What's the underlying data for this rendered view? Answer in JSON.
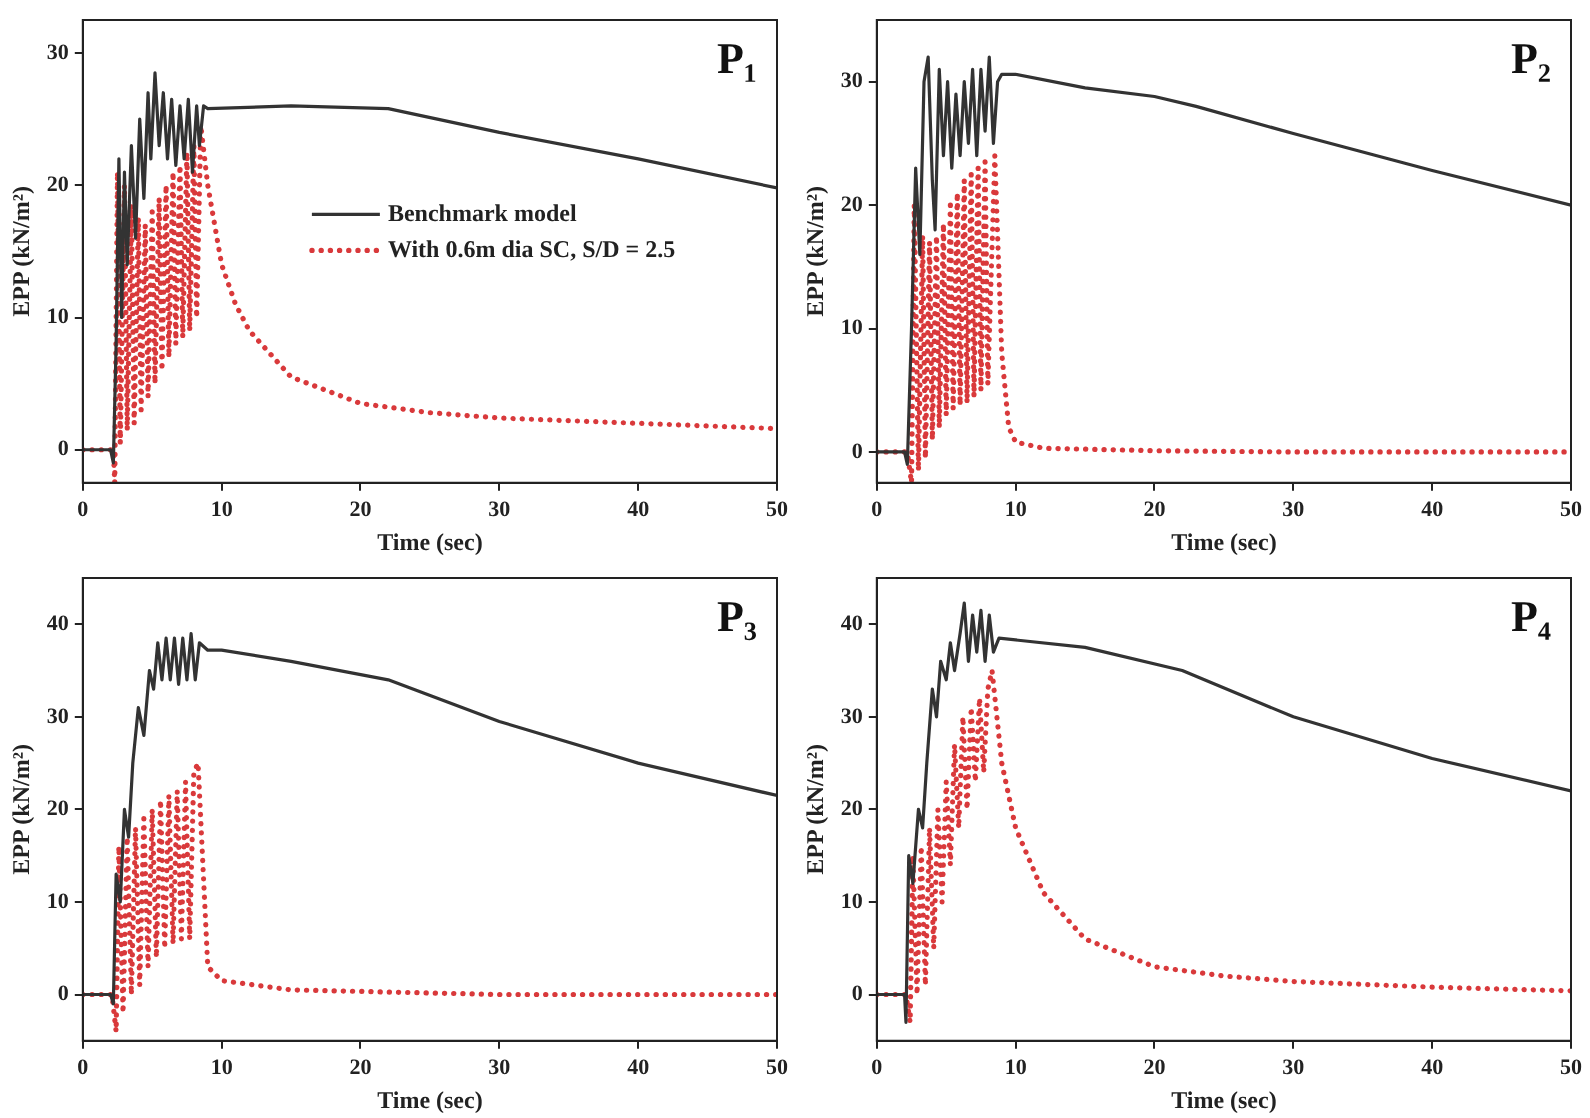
{
  "chart_data": [
    {
      "type": "line",
      "title": "P₁",
      "xlabel": "Time (sec)",
      "ylabel": "EPP (kN/m²)",
      "xlim": [
        0,
        50
      ],
      "xticks": [
        0,
        10,
        20,
        30,
        40,
        50
      ],
      "ylim": [
        -2.5,
        32.5
      ],
      "yticks": [
        0,
        10,
        20,
        30
      ],
      "grid": false,
      "legend": "center",
      "marker": "none",
      "series": [
        {
          "name": "Benchmark model",
          "color": "#333333",
          "line_style": "solid",
          "x": [
            0,
            2,
            2.2,
            2.4,
            2.6,
            2.8,
            3.0,
            3.2,
            3.5,
            3.8,
            4.1,
            4.4,
            4.7,
            4.9,
            5.2,
            5.5,
            5.8,
            6.1,
            6.4,
            6.7,
            7.0,
            7.3,
            7.6,
            7.9,
            8.2,
            8.4,
            8.7,
            9,
            15,
            22,
            30,
            40,
            50
          ],
          "values": [
            0,
            0,
            -1,
            8,
            22,
            10,
            21,
            14,
            23,
            16,
            25,
            19,
            27,
            22,
            28.5,
            23,
            27,
            22,
            26.5,
            21.5,
            26,
            22,
            26.5,
            21,
            26,
            23,
            26,
            25.8,
            26,
            25.8,
            24,
            22,
            19.8
          ]
        },
        {
          "name": "With 0.6m dia SC, S/D = 2.5",
          "color": "#d9393b",
          "line_style": "dotted",
          "x": [
            0,
            2.2,
            2.3,
            2.5,
            2.7,
            3.0,
            3.2,
            3.5,
            3.7,
            4.0,
            4.2,
            4.5,
            4.7,
            5.0,
            5.2,
            5.5,
            5.7,
            6.0,
            6.2,
            6.5,
            6.7,
            7.0,
            7.2,
            7.5,
            7.7,
            8.0,
            8.2,
            8.5,
            9,
            10,
            11,
            12,
            15,
            20,
            25,
            30,
            40,
            50
          ],
          "values": [
            0,
            0,
            -2.5,
            21,
            0.5,
            20,
            1.5,
            18.5,
            2,
            17.5,
            3,
            17,
            4,
            18,
            5,
            19,
            6,
            20,
            7,
            21,
            8,
            21.5,
            8.5,
            22.5,
            9,
            23,
            10,
            24.5,
            20,
            14,
            11,
            9,
            5.5,
            3.5,
            2.8,
            2.4,
            2,
            1.6
          ]
        }
      ]
    },
    {
      "type": "line",
      "title": "P₂",
      "xlabel": "Time (sec)",
      "ylabel": "EPP (kN/m²)",
      "xlim": [
        0,
        50
      ],
      "xticks": [
        0,
        10,
        20,
        30,
        40,
        50
      ],
      "ylim": [
        -2.5,
        35
      ],
      "yticks": [
        0,
        10,
        20,
        30
      ],
      "grid": false,
      "marker": "none",
      "series": [
        {
          "color": "#333333",
          "line_style": "solid",
          "x": [
            0,
            2,
            2.2,
            2.5,
            2.8,
            3.1,
            3.4,
            3.7,
            4.0,
            4.2,
            4.5,
            4.8,
            5.1,
            5.4,
            5.7,
            6.0,
            6.3,
            6.6,
            6.9,
            7.2,
            7.5,
            7.8,
            8.1,
            8.4,
            8.7,
            9,
            10,
            15,
            20,
            23,
            30,
            40,
            50
          ],
          "values": [
            0,
            0,
            -1,
            10,
            23,
            16,
            30,
            32,
            22,
            18,
            31,
            24,
            30,
            23,
            29,
            24,
            30,
            25,
            31,
            24,
            31,
            26,
            32,
            25,
            30,
            30.6,
            30.6,
            29.5,
            28.8,
            28,
            25.8,
            22.8,
            20
          ]
        },
        {
          "color": "#d9393b",
          "line_style": "dotted",
          "x": [
            0,
            2.2,
            2.5,
            2.7,
            3.0,
            3.3,
            3.5,
            3.8,
            4.0,
            4.3,
            4.5,
            4.8,
            5.0,
            5.3,
            5.5,
            5.8,
            6.0,
            6.3,
            6.5,
            6.8,
            7.0,
            7.3,
            7.5,
            7.8,
            8.0,
            8.5,
            9,
            9.5,
            10,
            12,
            20,
            30,
            50
          ],
          "values": [
            0,
            0,
            -2.5,
            20,
            -1.5,
            17.5,
            -0.5,
            17,
            1,
            17.5,
            2,
            18.5,
            3,
            20,
            3.5,
            21,
            3.8,
            22,
            4,
            22.5,
            4.5,
            23,
            5,
            23.5,
            5.5,
            24,
            8,
            2,
            0.8,
            0.3,
            0.1,
            0,
            0
          ]
        }
      ]
    },
    {
      "type": "line",
      "title": "P₃",
      "xlabel": "Time (sec)",
      "ylabel": "EPP (kN/m²)",
      "xlim": [
        0,
        50
      ],
      "xticks": [
        0,
        10,
        20,
        30,
        40,
        50
      ],
      "ylim": [
        -5,
        45
      ],
      "yticks": [
        0,
        10,
        20,
        30,
        40
      ],
      "grid": false,
      "marker": "none",
      "series": [
        {
          "color": "#333333",
          "line_style": "solid",
          "x": [
            0,
            2,
            2.2,
            2.4,
            2.7,
            3.0,
            3.3,
            3.6,
            4.0,
            4.4,
            4.8,
            5.1,
            5.4,
            5.7,
            6.0,
            6.3,
            6.6,
            6.9,
            7.2,
            7.5,
            7.8,
            8.1,
            8.4,
            9,
            10,
            15,
            22,
            30,
            40,
            50
          ],
          "values": [
            0,
            0,
            -1,
            13,
            10,
            20,
            17,
            25,
            31,
            28,
            35,
            33,
            38,
            34,
            38.5,
            34,
            38.5,
            33.5,
            38.5,
            34,
            39,
            34,
            38,
            37.2,
            37.2,
            36,
            34,
            29.5,
            25,
            21.5
          ]
        },
        {
          "color": "#d9393b",
          "line_style": "dotted",
          "x": [
            0,
            2.1,
            2.4,
            2.6,
            2.9,
            3.2,
            3.5,
            3.8,
            4.1,
            4.4,
            4.7,
            5.0,
            5.3,
            5.6,
            5.9,
            6.2,
            6.5,
            6.8,
            7.1,
            7.4,
            7.7,
            8.0,
            8.3,
            9,
            10,
            15,
            30,
            50
          ],
          "values": [
            0,
            0,
            -4,
            16,
            -2,
            17,
            0,
            18,
            1,
            19,
            3,
            20,
            4,
            21,
            5,
            21.5,
            5.5,
            22,
            6,
            23,
            6,
            24,
            25,
            3,
            1.5,
            0.5,
            0,
            0
          ]
        }
      ]
    },
    {
      "type": "line",
      "title": "P₄",
      "xlabel": "Time (sec)",
      "ylabel": "EPP (kN/m²)",
      "xlim": [
        0,
        50
      ],
      "xticks": [
        0,
        10,
        20,
        30,
        40,
        50
      ],
      "ylim": [
        -5,
        45
      ],
      "yticks": [
        0,
        10,
        20,
        30,
        40
      ],
      "grid": false,
      "marker": "none",
      "series": [
        {
          "color": "#333333",
          "line_style": "solid",
          "x": [
            0,
            2,
            2.1,
            2.3,
            2.6,
            3.0,
            3.3,
            3.6,
            4.0,
            4.3,
            4.6,
            5.0,
            5.3,
            5.6,
            6.0,
            6.3,
            6.6,
            6.9,
            7.2,
            7.5,
            7.8,
            8.1,
            8.4,
            8.8,
            15,
            22,
            30,
            40,
            50
          ],
          "values": [
            0,
            0,
            -3,
            15,
            12,
            20,
            18,
            25,
            33,
            30,
            36,
            34,
            38,
            35,
            39,
            42.3,
            36,
            41,
            37,
            41.5,
            36,
            41,
            37,
            38.5,
            37.5,
            35,
            30,
            25.5,
            22
          ]
        },
        {
          "color": "#d9393b",
          "line_style": "dotted",
          "x": [
            0,
            2.1,
            2.4,
            2.6,
            2.9,
            3.2,
            3.5,
            3.8,
            4.1,
            4.4,
            4.7,
            5.0,
            5.3,
            5.6,
            5.9,
            6.2,
            6.5,
            6.8,
            7.1,
            7.4,
            7.7,
            8.0,
            8.3,
            9,
            10,
            12,
            15,
            20,
            25,
            30,
            40,
            50
          ],
          "values": [
            0,
            0,
            -3,
            15,
            0,
            16,
            1,
            18,
            5,
            20,
            10,
            23,
            14,
            27,
            18,
            30,
            20,
            31,
            23,
            32,
            24,
            33,
            35,
            25,
            18,
            11,
            6,
            3,
            2,
            1.4,
            0.8,
            0.4
          ]
        }
      ]
    }
  ]
}
